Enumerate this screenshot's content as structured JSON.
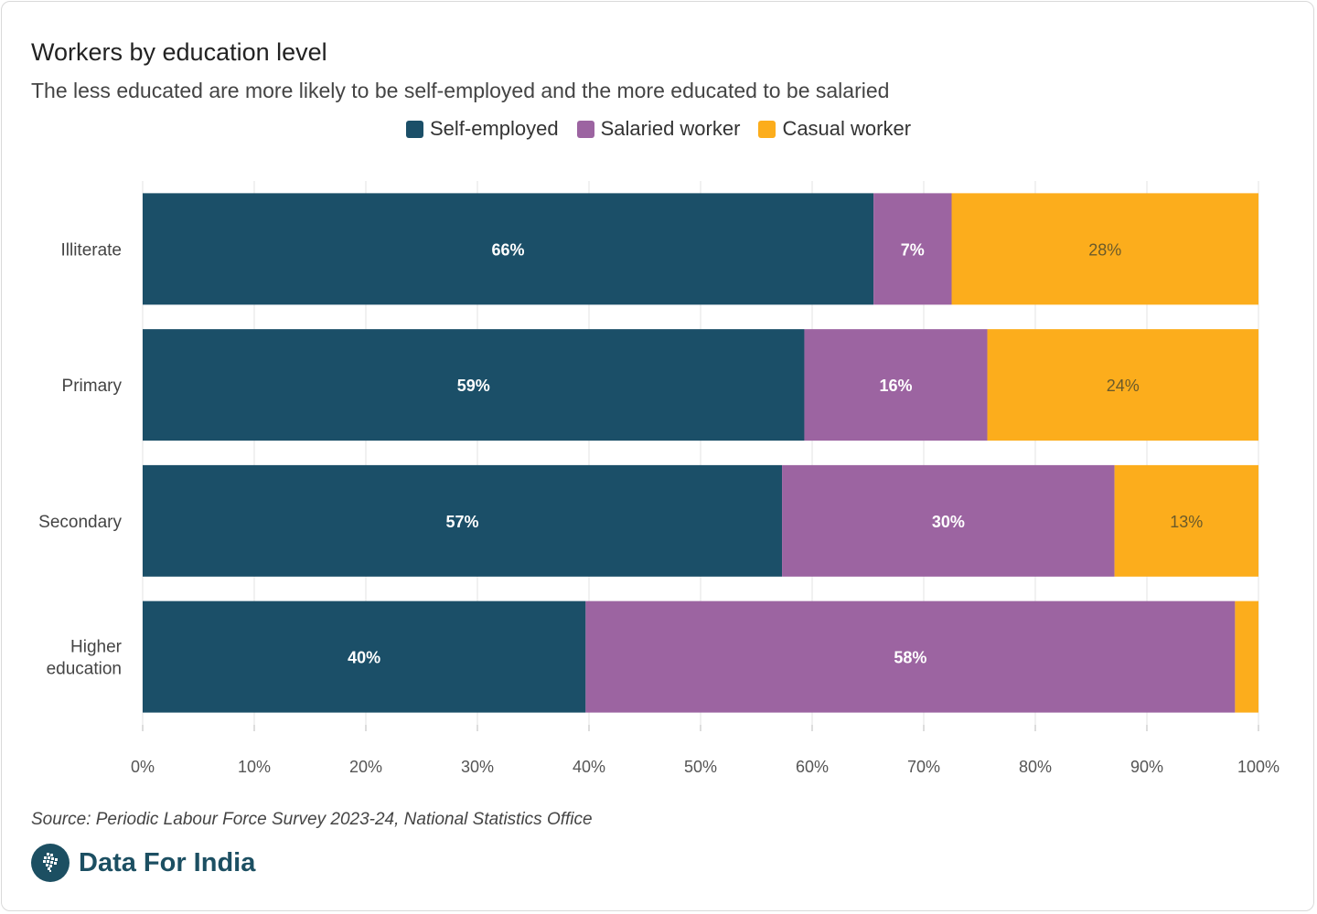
{
  "colors": {
    "self_employed": "#1b4f68",
    "salaried": "#9c64a1",
    "casual": "#fcad1c"
  },
  "chart_data": {
    "type": "bar",
    "orientation": "horizontal",
    "stacked": true,
    "title": "Workers by education level",
    "subtitle": "The less educated are more likely to be self-employed and the more educated to be salaried",
    "categories": [
      "Illiterate",
      "Primary",
      "Secondary",
      "Higher education"
    ],
    "series": [
      {
        "name": "Self-employed",
        "values": [
          65.5,
          59.3,
          57.3,
          39.7
        ],
        "labels": [
          "66%",
          "59%",
          "57%",
          "40%"
        ],
        "label_color": "#ffffff"
      },
      {
        "name": "Salaried worker",
        "values": [
          7.0,
          16.4,
          29.8,
          58.2
        ],
        "labels": [
          "7%",
          "16%",
          "30%",
          "58%"
        ],
        "label_color": "#ffffff"
      },
      {
        "name": "Casual worker",
        "values": [
          27.5,
          24.3,
          12.9,
          2.1
        ],
        "labels": [
          "28%",
          "24%",
          "13%",
          ""
        ],
        "label_color": "#6b5a2a"
      }
    ],
    "xlim": [
      0,
      100
    ],
    "x_ticks": [
      "0%",
      "10%",
      "20%",
      "30%",
      "40%",
      "50%",
      "60%",
      "70%",
      "80%",
      "90%",
      "100%"
    ],
    "grid": true,
    "legend_position": "top-center"
  },
  "footer": {
    "source": "Source: Periodic Labour Force Survey 2023-24, National Statistics Office",
    "brand": "Data For India"
  }
}
